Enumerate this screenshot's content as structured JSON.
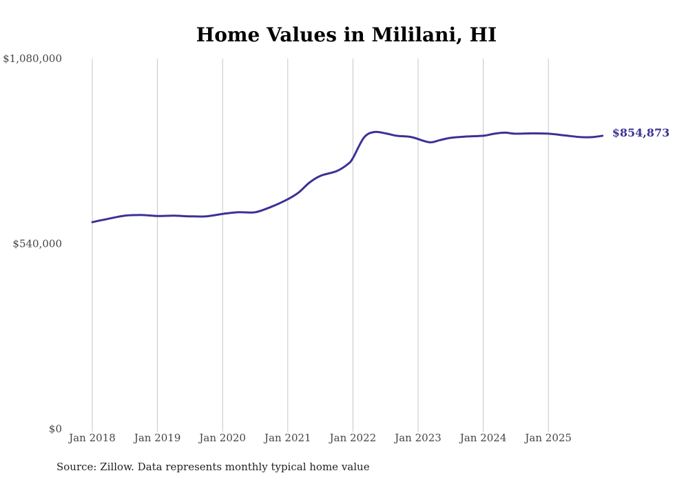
{
  "chart_data": {
    "type": "line",
    "title": "Home Values in Mililani, HI",
    "xlabel": "",
    "ylabel": "",
    "ylim": [
      0,
      1080000
    ],
    "y_ticks": [
      {
        "value": 0,
        "label": "$0"
      },
      {
        "value": 540000,
        "label": "$540,000"
      },
      {
        "value": 1080000,
        "label": "$1,080,000"
      }
    ],
    "x_ticks": [
      {
        "value": 2018,
        "label": "Jan 2018"
      },
      {
        "value": 2019,
        "label": "Jan 2019"
      },
      {
        "value": 2020,
        "label": "Jan 2020"
      },
      {
        "value": 2021,
        "label": "Jan 2021"
      },
      {
        "value": 2022,
        "label": "Jan 2022"
      },
      {
        "value": 2023,
        "label": "Jan 2023"
      },
      {
        "value": 2024,
        "label": "Jan 2024"
      },
      {
        "value": 2025,
        "label": "Jan 2025"
      }
    ],
    "xlim": [
      2018,
      2025.9
    ],
    "grid": "vertical",
    "series": [
      {
        "name": "Typical home value",
        "color": "#3b3195",
        "end_label": "$854,873",
        "x": [
          2018.0,
          2018.25,
          2018.5,
          2018.75,
          2019.0,
          2019.25,
          2019.5,
          2019.75,
          2020.0,
          2020.25,
          2020.5,
          2020.75,
          2021.0,
          2021.17,
          2021.33,
          2021.5,
          2021.75,
          2021.92,
          2022.0,
          2022.17,
          2022.33,
          2022.5,
          2022.67,
          2022.9,
          2023.17,
          2023.33,
          2023.5,
          2023.75,
          2024.0,
          2024.17,
          2024.33,
          2024.5,
          2024.75,
          2025.0,
          2025.25,
          2025.5,
          2025.67,
          2025.83
        ],
        "values": [
          603000,
          613000,
          622000,
          624000,
          621000,
          622000,
          620000,
          620000,
          627000,
          632000,
          632000,
          648000,
          670000,
          690000,
          718000,
          738000,
          752000,
          772000,
          790000,
          850000,
          866000,
          862000,
          855000,
          851000,
          836000,
          842000,
          849000,
          853000,
          855000,
          861000,
          864000,
          861000,
          862000,
          861000,
          856000,
          851000,
          851000,
          854873
        ]
      }
    ]
  },
  "footer": {
    "source_note": "Source: Zillow. Data represents monthly typical home value"
  }
}
